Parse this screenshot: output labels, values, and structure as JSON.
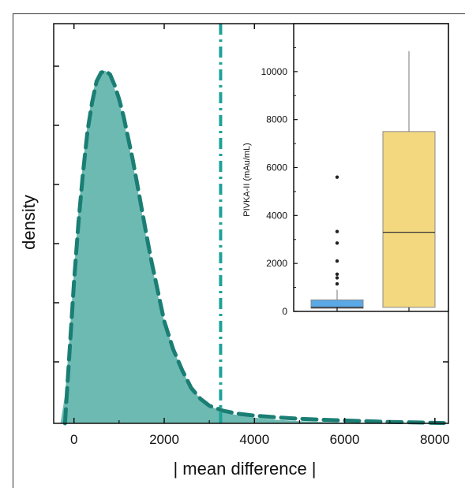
{
  "chart_data": [
    {
      "type": "area",
      "title": "",
      "xlabel": "| mean difference |",
      "ylabel": "density",
      "xlim": [
        -450,
        8300
      ],
      "ylim": [
        0,
        1.0
      ],
      "x_ticks": [
        0,
        2000,
        4000,
        6000,
        8000
      ],
      "x_tick_labels": [
        "0",
        "2000",
        "4000",
        "6000",
        "8000"
      ],
      "y_tick_count": 7,
      "y_tick_labels_shown": false,
      "grid": false,
      "series": [
        {
          "style": "filled-area",
          "color": "#6dbab2",
          "x": [
            -450,
            -300,
            -200,
            -100,
            0,
            100,
            200,
            300,
            400,
            500,
            600,
            700,
            800,
            900,
            1000,
            1100,
            1200,
            1300,
            1400,
            1500,
            1600,
            1700,
            1800,
            1900,
            2000,
            2200,
            2400,
            2600,
            2800,
            3000,
            3300,
            3600,
            4000,
            4500,
            5000,
            5500,
            6000,
            7000,
            8200
          ],
          "y": [
            0,
            0,
            0.08,
            0.24,
            0.43,
            0.6,
            0.74,
            0.85,
            0.93,
            0.98,
            1.0,
            1.0,
            0.98,
            0.95,
            0.91,
            0.86,
            0.8,
            0.74,
            0.67,
            0.6,
            0.53,
            0.47,
            0.4,
            0.34,
            0.29,
            0.21,
            0.15,
            0.1,
            0.07,
            0.05,
            0.032,
            0.024,
            0.016,
            0.01,
            0.006,
            0.004,
            0.002,
            0.001,
            0
          ]
        },
        {
          "style": "dashed-line",
          "color": "#1a7e74",
          "x": [
            -200,
            -100,
            0,
            100,
            200,
            300,
            400,
            500,
            600,
            700,
            800,
            900,
            1000,
            1100,
            1200,
            1300,
            1400,
            1500,
            1600,
            1700,
            1800,
            1900,
            2000,
            2200,
            2400,
            2600,
            2800,
            3000,
            3300,
            3600,
            4000,
            4500,
            5000,
            5500,
            6000,
            6500,
            7000,
            7500,
            8200
          ],
          "y": [
            0.0,
            0.2,
            0.4,
            0.57,
            0.71,
            0.83,
            0.91,
            0.97,
            0.995,
            1.0,
            0.99,
            0.96,
            0.92,
            0.87,
            0.81,
            0.75,
            0.68,
            0.61,
            0.54,
            0.47,
            0.41,
            0.35,
            0.29,
            0.21,
            0.15,
            0.1,
            0.07,
            0.05,
            0.036,
            0.028,
            0.022,
            0.017,
            0.013,
            0.01,
            0.008,
            0.006,
            0.004,
            0.003,
            0.001
          ]
        }
      ],
      "annotations": [
        {
          "type": "vertical-dashdot-line",
          "x": 3250,
          "color": "#1ba399"
        }
      ]
    },
    {
      "type": "box",
      "title": "",
      "xlabel": "",
      "ylabel": "PIVKA-II (mAu/mL)",
      "ylim": [
        0,
        12000
      ],
      "y_ticks": [
        0,
        2000,
        4000,
        6000,
        8000,
        10000
      ],
      "y_tick_labels": [
        "0",
        "2000",
        "4000",
        "6000",
        "8000",
        "10000"
      ],
      "grid": false,
      "boxes": [
        {
          "color": "#5aa9e6",
          "whisker_low": 0,
          "q1": 130,
          "median": 170,
          "q3": 480,
          "whisker_high": 900,
          "outliers": [
            1150,
            1400,
            1550,
            2100,
            2850,
            3330,
            5600
          ]
        },
        {
          "color": "#f3d87f",
          "whisker_low": 0,
          "q1": 170,
          "median": 3300,
          "q3": 7500,
          "whisker_high": 10850,
          "outliers": []
        }
      ]
    }
  ]
}
